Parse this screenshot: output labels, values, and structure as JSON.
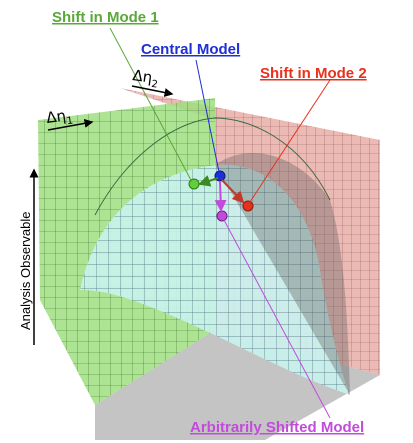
{
  "labels": {
    "shift_mode_1": "Shift in Mode 1",
    "central_model": "Central Model",
    "shift_mode_2": "Shift in Mode 2",
    "arbitrarily_shifted_model": "Arbitrarily Shifted Model"
  },
  "axes": {
    "eta2_symbol": "Δη",
    "eta2_sub": "2",
    "eta1_symbol": "Δη",
    "eta1_sub": "1",
    "y_label": "Analysis Observable"
  },
  "colors": {
    "mode1": "#5aa83a",
    "central": "#1f2fd6",
    "mode2": "#e8311c",
    "arbitrary": "#c24bdc",
    "green_plane": "#9fdf80",
    "pink_plane": "#e9b3ad",
    "surface": "#c9f3ee",
    "floor": "#c4c4c4"
  }
}
